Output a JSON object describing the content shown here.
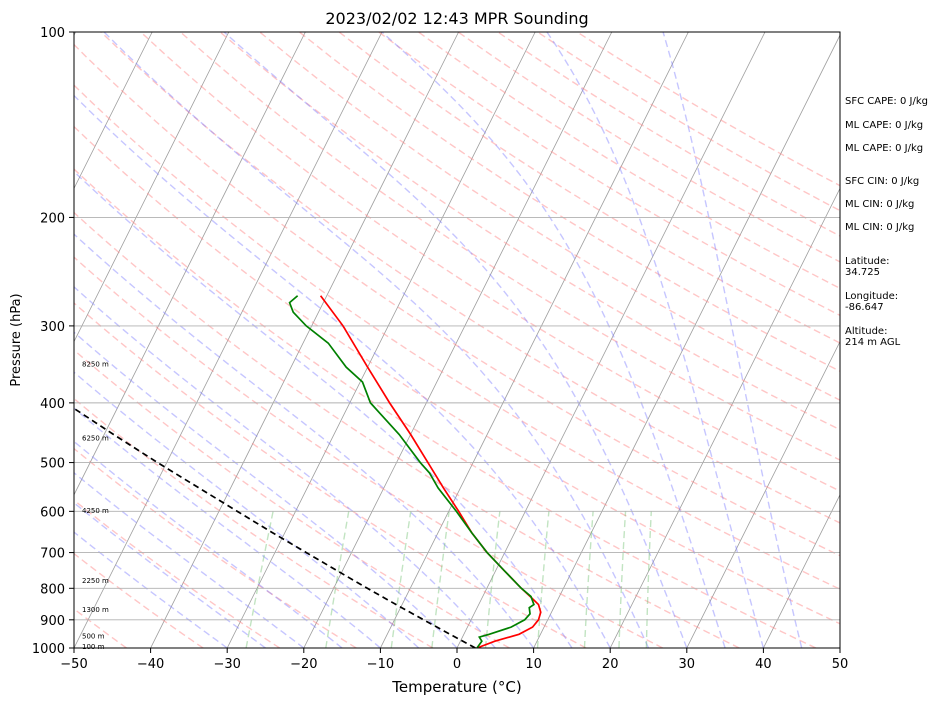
{
  "chart_data": {
    "type": "line",
    "title": "2023/02/02 12:43 MPR Sounding",
    "xlabel": "Temperature (°C)",
    "ylabel": "Pressure (hPa)",
    "xlim": [
      -50,
      50
    ],
    "ylim": [
      1000,
      100
    ],
    "y_scale": "log",
    "x_ticks": [
      -50,
      -40,
      -30,
      -20,
      -10,
      0,
      10,
      20,
      30,
      40,
      50
    ],
    "x_tick_labels": [
      "−50",
      "−40",
      "−30",
      "−20",
      "−10",
      "0",
      "10",
      "20",
      "30",
      "40",
      "50"
    ],
    "y_ticks": [
      100,
      200,
      300,
      400,
      500,
      600,
      700,
      800,
      900,
      1000
    ],
    "y_tick_labels": [
      "100",
      "200",
      "300",
      "400",
      "500",
      "600",
      "700",
      "800",
      "900",
      "1000"
    ],
    "grid": true,
    "skew": "skew-T log-P",
    "background_lines": {
      "isotherms_color": "#9e9e9e",
      "dry_adiabats_color": "#ff8080",
      "moist_adiabats_color": "#8080ff",
      "mixing_ratio_color": "#66bb66"
    },
    "series": [
      {
        "color": "#ff0000",
        "pressure": [
          1000,
          975,
          950,
          925,
          900,
          875,
          850,
          825,
          800,
          750,
          700,
          650,
          600,
          550,
          500,
          450,
          400,
          350,
          300,
          268
        ],
        "temperature": [
          2.6,
          4.5,
          7.2,
          8.5,
          8.8,
          8.6,
          7.8,
          6.2,
          4.5,
          1.2,
          -2.3,
          -5.6,
          -8.7,
          -12.2,
          -15.9,
          -20.0,
          -24.8,
          -30.0,
          -35.9,
          -40.8
        ]
      },
      {
        "color": "#008000",
        "pressure": [
          1000,
          975,
          960,
          950,
          925,
          900,
          880,
          860,
          850,
          825,
          800,
          750,
          700,
          650,
          600,
          550,
          520,
          500,
          450,
          420,
          400,
          370,
          350,
          320,
          300,
          285,
          275,
          268
        ],
        "dewpoint": [
          2.6,
          2.8,
          2.2,
          3.3,
          5.7,
          7.0,
          7.3,
          6.8,
          7.2,
          6.3,
          4.5,
          1.2,
          -2.3,
          -5.6,
          -9.0,
          -12.9,
          -15.0,
          -16.9,
          -21.5,
          -24.9,
          -27.3,
          -29.7,
          -32.8,
          -36.7,
          -40.7,
          -43.3,
          -44.4,
          -43.8
        ]
      },
      {
        "color": "#000000",
        "dash": true,
        "pressure": [
          1000,
          950,
          900,
          850,
          800,
          750,
          700,
          650,
          600,
          550,
          500,
          450,
          400,
          350,
          300,
          268
        ],
        "temperature": [
          2.4,
          -1.8,
          -6.2,
          -10.8,
          -15.6,
          -20.6,
          -25.9,
          -31.6,
          -37.6,
          -44.1,
          -51.2,
          -58.8,
          -67.1,
          -76.3,
          -86.6,
          -94.0
        ]
      }
    ],
    "height_labels": [
      {
        "pressure": 345,
        "text": "8250 m"
      },
      {
        "pressure": 455,
        "text": "6250 m"
      },
      {
        "pressure": 597,
        "text": "4250 m"
      },
      {
        "pressure": 775,
        "text": "2250 m"
      },
      {
        "pressure": 865,
        "text": "1300 m"
      },
      {
        "pressure": 955,
        "text": "500 m"
      },
      {
        "pressure": 992,
        "text": "100 m"
      }
    ],
    "annotations": {
      "sfc_cape": "SFC CAPE: 0 J/kg",
      "ml_cape_1": "ML CAPE: 0 J/kg",
      "ml_cape_2": "ML CAPE: 0 J/kg",
      "sfc_cin": "SFC CIN: 0 J/kg",
      "ml_cin_1": "ML CIN: 0 J/kg",
      "ml_cin_2": "ML CIN: 0 J/kg",
      "latitude_label": "Latitude:",
      "latitude_value": "34.725",
      "longitude_label": "Longitude:",
      "longitude_value": "-86.647",
      "altitude_label": "Altitude:",
      "altitude_value": "214 m AGL"
    }
  }
}
